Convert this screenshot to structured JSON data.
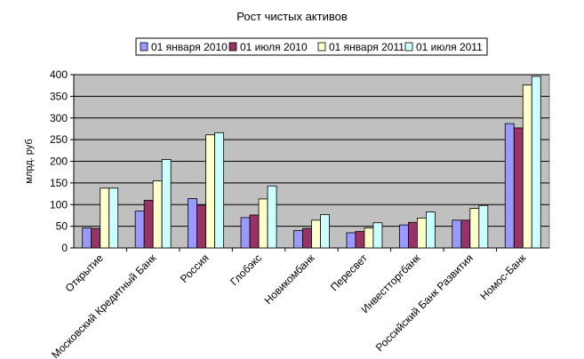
{
  "chart_data": {
    "type": "bar",
    "title": "Рост чистых активов",
    "ylabel": "млрд. руб",
    "xlabel": "",
    "ylim": [
      0,
      400
    ],
    "yticks": [
      0,
      50,
      100,
      150,
      200,
      250,
      300,
      350,
      400
    ],
    "grid": true,
    "legend_position": "top",
    "categories": [
      "Открытие",
      "Московский Кредитный Банк",
      "Россия",
      "Глобэкс",
      "Новикомбанк",
      "Пересвет",
      "Инвестторгбанк",
      "Российский Банк Развития",
      "Номос-Банк"
    ],
    "series": [
      {
        "name": "01 января 2010",
        "color": "#9999ff",
        "values": [
          46,
          85,
          114,
          70,
          40,
          35,
          53,
          64,
          287
        ]
      },
      {
        "name": "01 июля 2010",
        "color": "#993366",
        "values": [
          45,
          110,
          99,
          76,
          45,
          38,
          59,
          64,
          277
        ]
      },
      {
        "name": "01 января 2011",
        "color": "#ffffcc",
        "values": [
          138,
          155,
          261,
          113,
          64,
          46,
          69,
          91,
          376
        ]
      },
      {
        "name": "01 июля 2011",
        "color": "#ccffff",
        "values": [
          138,
          204,
          266,
          143,
          77,
          58,
          83,
          98,
          396
        ]
      }
    ]
  }
}
